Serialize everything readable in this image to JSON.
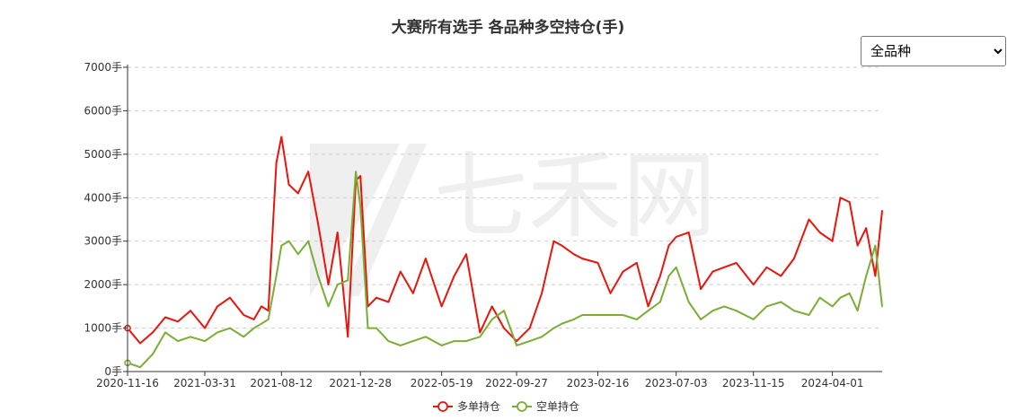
{
  "title": "大赛所有选手 各品种多空持仓(手)",
  "selector": {
    "selected": "全品种",
    "options": [
      "全品种"
    ]
  },
  "watermark": "七禾网",
  "colors": {
    "long": "#e8150c",
    "short": "#79ad35",
    "axis": "#333333",
    "grid": "#cccccc"
  },
  "chart_data": {
    "type": "line",
    "title": "大赛所有选手 各品种多空持仓(手)",
    "xlabel": "",
    "ylabel": "",
    "y_unit": "手",
    "ylim": [
      0,
      7000
    ],
    "y_ticks": [
      0,
      1000,
      2000,
      3000,
      4000,
      5000,
      6000,
      7000
    ],
    "y_tick_labels": [
      "0手",
      "1000手",
      "2000手",
      "3000手",
      "4000手",
      "5000手",
      "6000手",
      "7000手"
    ],
    "x_tick_labels": [
      "2020-11-16",
      "2021-03-31",
      "2021-08-12",
      "2021-12-28",
      "2022-05-19",
      "2022-09-27",
      "2023-02-16",
      "2023-07-03",
      "2023-11-15",
      "2024-04-01"
    ],
    "grid": "horizontal dashed",
    "legend_position": "bottom-center",
    "x": [
      "2020-11-16",
      "2020-12-08",
      "2020-12-30",
      "2021-01-21",
      "2021-02-12",
      "2021-03-06",
      "2021-03-31",
      "2021-04-22",
      "2021-05-14",
      "2021-06-07",
      "2021-06-25",
      "2021-07-08",
      "2021-07-20",
      "2021-08-03",
      "2021-08-12",
      "2021-08-25",
      "2021-09-10",
      "2021-09-28",
      "2021-10-15",
      "2021-11-02",
      "2021-11-18",
      "2021-12-06",
      "2021-12-20",
      "2021-12-28",
      "2022-01-10",
      "2022-01-25",
      "2022-02-15",
      "2022-03-08",
      "2022-03-30",
      "2022-04-21",
      "2022-05-19",
      "2022-06-10",
      "2022-07-01",
      "2022-07-25",
      "2022-08-15",
      "2022-09-05",
      "2022-09-27",
      "2022-10-20",
      "2022-11-10",
      "2022-12-01",
      "2022-12-15",
      "2023-01-05",
      "2023-01-20",
      "2023-02-16",
      "2023-03-10",
      "2023-04-01",
      "2023-04-25",
      "2023-05-15",
      "2023-06-05",
      "2023-06-20",
      "2023-07-03",
      "2023-07-25",
      "2023-08-15",
      "2023-09-05",
      "2023-09-25",
      "2023-10-16",
      "2023-11-15",
      "2023-12-08",
      "2024-01-02",
      "2024-01-25",
      "2024-02-20",
      "2024-03-10",
      "2024-04-01",
      "2024-04-15",
      "2024-05-01",
      "2024-05-15",
      "2024-05-30",
      "2024-06-15",
      "2024-06-27"
    ],
    "series": [
      {
        "name": "多单持仓",
        "color": "#e8150c",
        "values": [
          1000,
          650,
          900,
          1250,
          1150,
          1400,
          1000,
          1500,
          1700,
          1300,
          1200,
          1500,
          1400,
          4800,
          5400,
          4300,
          4100,
          4600,
          3400,
          2000,
          3200,
          800,
          4400,
          4500,
          1500,
          1700,
          1600,
          2300,
          1800,
          2600,
          1500,
          2200,
          2700,
          900,
          1500,
          1000,
          700,
          1000,
          1800,
          3000,
          2900,
          2700,
          2600,
          2500,
          1800,
          2300,
          2500,
          1500,
          2200,
          2900,
          3100,
          3200,
          1900,
          2300,
          2400,
          2500,
          2000,
          2400,
          2200,
          2600,
          3500,
          3200,
          3000,
          4000,
          3900,
          2900,
          3300,
          2200,
          3700
        ]
      },
      {
        "name": "空单持仓",
        "color": "#79ad35",
        "values": [
          200,
          100,
          400,
          900,
          700,
          800,
          700,
          900,
          1000,
          800,
          1000,
          1100,
          1200,
          2200,
          2900,
          3000,
          2700,
          3000,
          2200,
          1500,
          2000,
          2100,
          4600,
          3800,
          1000,
          1000,
          700,
          600,
          700,
          800,
          600,
          700,
          700,
          800,
          1200,
          1400,
          600,
          700,
          800,
          1000,
          1100,
          1200,
          1300,
          1300,
          1300,
          1300,
          1200,
          1400,
          1600,
          2200,
          2400,
          1600,
          1200,
          1400,
          1500,
          1400,
          1200,
          1500,
          1600,
          1400,
          1300,
          1700,
          1500,
          1700,
          1800,
          1400,
          2200,
          2900,
          1500
        ]
      }
    ]
  }
}
